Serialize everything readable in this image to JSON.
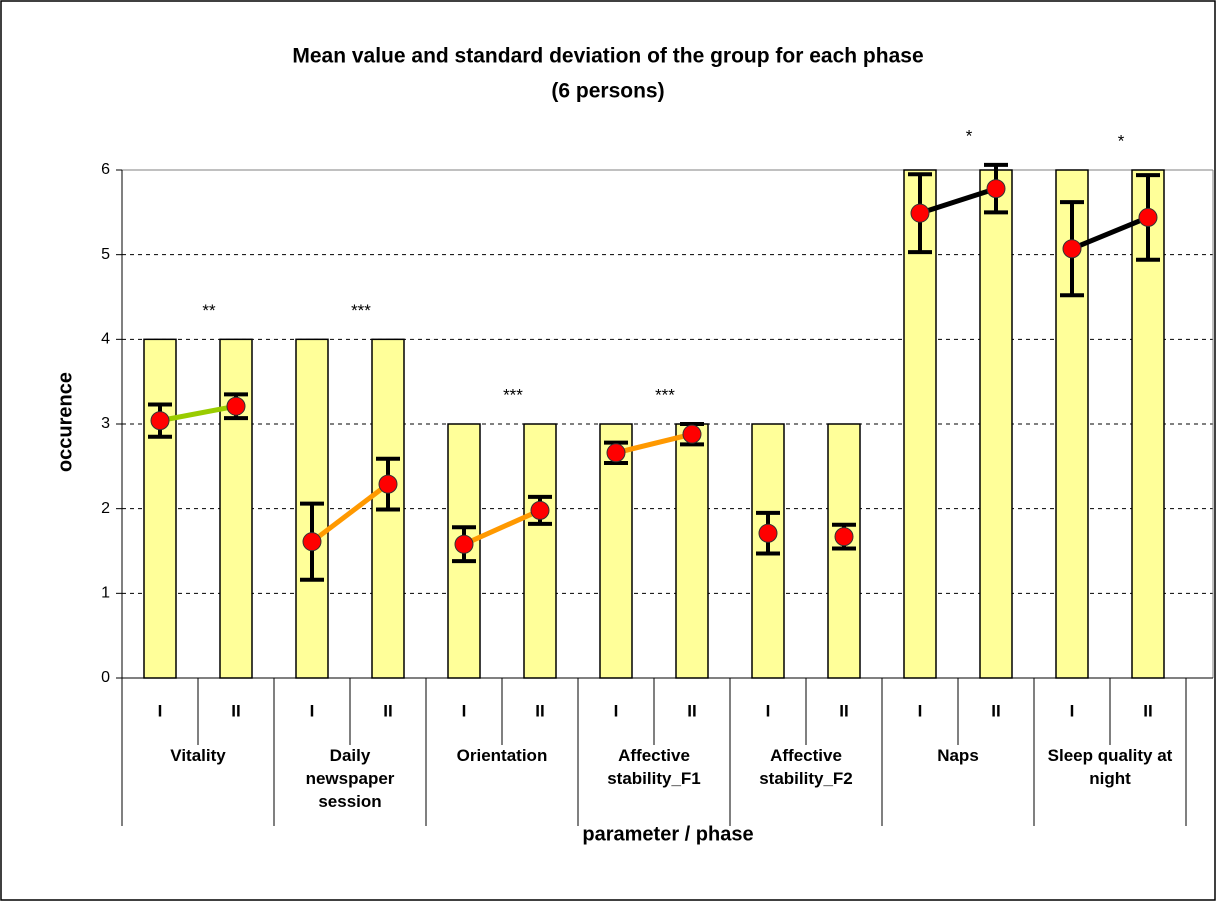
{
  "chart_data": {
    "type": "bar",
    "title": "Mean value and standard deviation of the group for each phase",
    "subtitle": "(6 persons)",
    "xlabel": "parameter / phase",
    "ylabel": "occurence",
    "categories": [
      "Vitality",
      "Daily newspaper session",
      "Orientation",
      "Affective stability_F1",
      "Affective stability_F2",
      "Naps",
      "Sleep quality at night"
    ],
    "phases": [
      "I",
      "II"
    ],
    "bar_color": "#ffff99",
    "bars": [
      [
        4,
        4
      ],
      [
        4,
        4
      ],
      [
        3,
        3
      ],
      [
        3,
        3
      ],
      [
        3,
        3
      ],
      [
        6,
        6
      ],
      [
        6,
        6
      ]
    ],
    "means": [
      [
        3.04,
        3.21
      ],
      [
        1.61,
        2.29
      ],
      [
        1.58,
        1.98
      ],
      [
        2.66,
        2.88
      ],
      [
        1.71,
        1.67
      ],
      [
        5.49,
        5.78
      ],
      [
        5.07,
        5.44
      ]
    ],
    "sd": [
      [
        0.19,
        0.14
      ],
      [
        0.45,
        0.3
      ],
      [
        0.2,
        0.16
      ],
      [
        0.12,
        0.12
      ],
      [
        0.24,
        0.14
      ],
      [
        0.46,
        0.28
      ],
      [
        0.55,
        0.5
      ]
    ],
    "point_color": "#ff0000",
    "line_colors": [
      "#99cc00",
      "#ff9900",
      "#ff9900",
      "#ff9900",
      null,
      "#000000",
      "#000000"
    ],
    "significance": [
      "**",
      "***",
      "***",
      "***",
      null,
      "*",
      "*"
    ],
    "ylim": [
      0,
      6
    ],
    "yticks": [
      0,
      1,
      2,
      3,
      4,
      5,
      6
    ],
    "grid": true
  }
}
